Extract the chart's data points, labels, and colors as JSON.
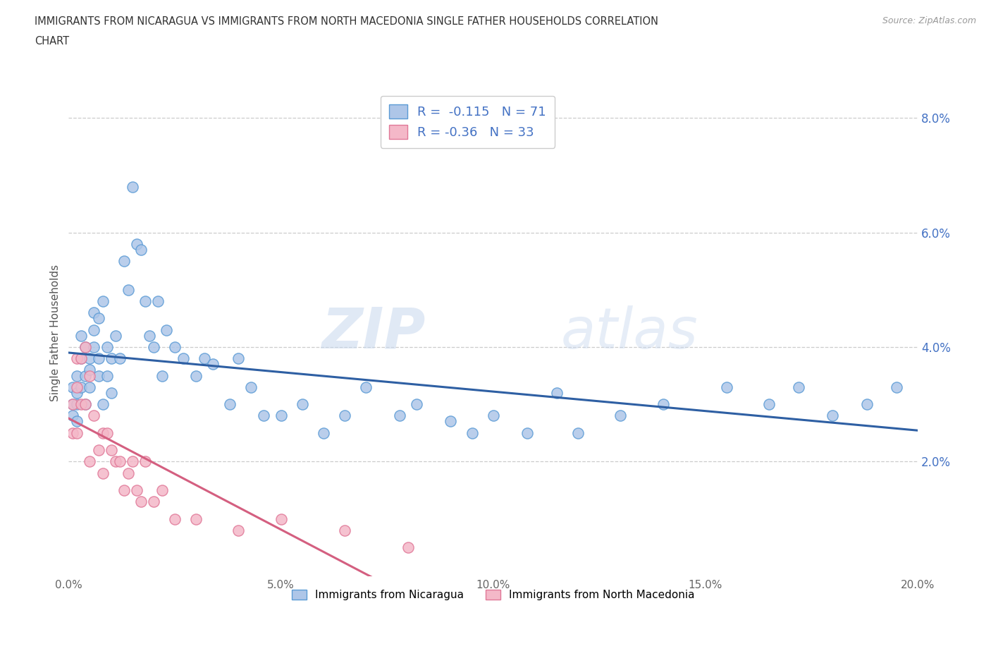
{
  "title": "IMMIGRANTS FROM NICARAGUA VS IMMIGRANTS FROM NORTH MACEDONIA SINGLE FATHER HOUSEHOLDS CORRELATION\nCHART",
  "source_text": "Source: ZipAtlas.com",
  "ylabel": "Single Father Households",
  "xlim": [
    0.0,
    0.2
  ],
  "ylim": [
    0.0,
    0.085
  ],
  "xtick_vals": [
    0.0,
    0.05,
    0.1,
    0.15,
    0.2
  ],
  "xtick_labels": [
    "0.0%",
    "5.0%",
    "10.0%",
    "15.0%",
    "20.0%"
  ],
  "ytick_vals": [
    0.02,
    0.04,
    0.06,
    0.08
  ],
  "ytick_labels": [
    "2.0%",
    "4.0%",
    "6.0%",
    "8.0%"
  ],
  "nicaragua_color": "#aec6e8",
  "nicaragua_edge": "#5b9bd5",
  "macedonia_color": "#f4b8c8",
  "macedonia_edge": "#e07898",
  "trendline_nicaragua_color": "#2e5fa3",
  "trendline_macedonia_color": "#d45f80",
  "R_nicaragua": -0.115,
  "N_nicaragua": 71,
  "R_macedonia": -0.36,
  "N_macedonia": 33,
  "watermark_zip": "ZIP",
  "watermark_atlas": "atlas",
  "legend_label_nicaragua": "Immigrants from Nicaragua",
  "legend_label_macedonia": "Immigrants from North Macedonia",
  "nicaragua_x": [
    0.001,
    0.001,
    0.001,
    0.002,
    0.002,
    0.002,
    0.002,
    0.003,
    0.003,
    0.003,
    0.004,
    0.004,
    0.004,
    0.005,
    0.005,
    0.005,
    0.006,
    0.006,
    0.006,
    0.007,
    0.007,
    0.007,
    0.008,
    0.008,
    0.009,
    0.009,
    0.01,
    0.01,
    0.011,
    0.012,
    0.013,
    0.014,
    0.015,
    0.016,
    0.017,
    0.018,
    0.019,
    0.02,
    0.021,
    0.022,
    0.023,
    0.025,
    0.027,
    0.03,
    0.032,
    0.034,
    0.038,
    0.04,
    0.043,
    0.046,
    0.05,
    0.055,
    0.06,
    0.065,
    0.07,
    0.078,
    0.082,
    0.09,
    0.095,
    0.1,
    0.108,
    0.115,
    0.12,
    0.13,
    0.14,
    0.155,
    0.165,
    0.172,
    0.18,
    0.188,
    0.195
  ],
  "nicaragua_y": [
    0.03,
    0.033,
    0.028,
    0.035,
    0.032,
    0.03,
    0.027,
    0.033,
    0.038,
    0.042,
    0.03,
    0.035,
    0.04,
    0.033,
    0.038,
    0.036,
    0.04,
    0.043,
    0.046,
    0.035,
    0.038,
    0.045,
    0.048,
    0.03,
    0.035,
    0.04,
    0.032,
    0.038,
    0.042,
    0.038,
    0.055,
    0.05,
    0.068,
    0.058,
    0.057,
    0.048,
    0.042,
    0.04,
    0.048,
    0.035,
    0.043,
    0.04,
    0.038,
    0.035,
    0.038,
    0.037,
    0.03,
    0.038,
    0.033,
    0.028,
    0.028,
    0.03,
    0.025,
    0.028,
    0.033,
    0.028,
    0.03,
    0.027,
    0.025,
    0.028,
    0.025,
    0.032,
    0.025,
    0.028,
    0.03,
    0.033,
    0.03,
    0.033,
    0.028,
    0.03,
    0.033
  ],
  "macedonia_x": [
    0.001,
    0.001,
    0.002,
    0.002,
    0.002,
    0.003,
    0.003,
    0.004,
    0.004,
    0.005,
    0.005,
    0.006,
    0.007,
    0.008,
    0.008,
    0.009,
    0.01,
    0.011,
    0.012,
    0.013,
    0.014,
    0.015,
    0.016,
    0.017,
    0.018,
    0.02,
    0.022,
    0.025,
    0.03,
    0.04,
    0.05,
    0.065,
    0.08
  ],
  "macedonia_y": [
    0.03,
    0.025,
    0.038,
    0.033,
    0.025,
    0.038,
    0.03,
    0.04,
    0.03,
    0.035,
    0.02,
    0.028,
    0.022,
    0.025,
    0.018,
    0.025,
    0.022,
    0.02,
    0.02,
    0.015,
    0.018,
    0.02,
    0.015,
    0.013,
    0.02,
    0.013,
    0.015,
    0.01,
    0.01,
    0.008,
    0.01,
    0.008,
    0.005
  ]
}
